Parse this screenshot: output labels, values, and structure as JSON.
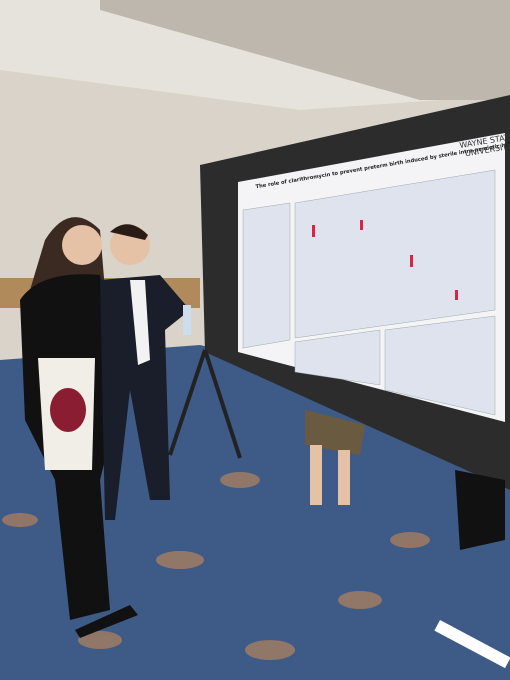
{
  "poster": {
    "title": "The role of clarithromycin to prevent preterm birth induced by sterile intra-amniotic inflammation",
    "institution": [
      "WAYNE STATE",
      "UNIVERSITY"
    ]
  }
}
